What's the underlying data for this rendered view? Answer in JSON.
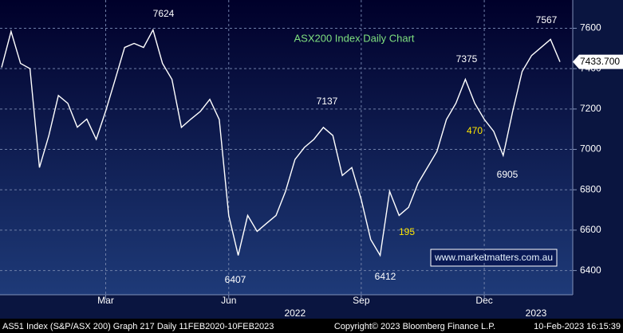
{
  "chart_data": {
    "type": "line",
    "title": "ASX200 Index Daily Chart",
    "categories": [
      null,
      null,
      null,
      null,
      null,
      null,
      null,
      null,
      null,
      null,
      null,
      "Mar",
      null,
      null,
      null,
      null,
      null,
      null,
      null,
      null,
      null,
      null,
      null,
      null,
      "Jun",
      null,
      null,
      null,
      null,
      null,
      null,
      null,
      null,
      null,
      null,
      null,
      null,
      null,
      "Sep",
      null,
      null,
      null,
      null,
      null,
      null,
      null,
      null,
      null,
      null,
      null,
      null,
      "Dec",
      null,
      null,
      null,
      null,
      null,
      null,
      null,
      null
    ],
    "x_year_labels": [
      "2022",
      "2023"
    ],
    "series": [
      {
        "name": "AS51 Index",
        "color": "#ffffff",
        "values": [
          7406,
          7584,
          7426,
          7400,
          6910,
          7070,
          7267,
          7228,
          7110,
          7150,
          7050,
          7190,
          7346,
          7505,
          7525,
          7505,
          7592,
          7426,
          7347,
          7109,
          7150,
          7188,
          7248,
          7148,
          6673,
          6475,
          6673,
          6594,
          6634,
          6673,
          6792,
          6950,
          7010,
          7050,
          7109,
          7069,
          6871,
          6910,
          6752,
          6554,
          6475,
          6792,
          6673,
          6713,
          6832,
          6911,
          6990,
          7148,
          7228,
          7347,
          7228,
          7149,
          7089,
          6970,
          7188,
          7386,
          7465,
          7505,
          7545,
          7433.7
        ]
      }
    ],
    "last_price_label": "7433.700",
    "ylim": [
      6280,
      7740
    ],
    "yticks": [
      6400,
      6600,
      6800,
      7000,
      7200,
      7400,
      7600
    ],
    "grid": true,
    "annotations": [
      {
        "text": "7624",
        "color": "#ffffff"
      },
      {
        "text": "7137",
        "color": "#ffffff"
      },
      {
        "text": "7375",
        "color": "#ffffff"
      },
      {
        "text": "7567",
        "color": "#ffffff"
      },
      {
        "text": "6407",
        "color": "#ffffff"
      },
      {
        "text": "6412",
        "color": "#ffffff"
      },
      {
        "text": "6905",
        "color": "#ffffff"
      },
      {
        "text": "470",
        "color": "#ffe600"
      },
      {
        "text": "195",
        "color": "#ffe600"
      }
    ],
    "website": "www.marketmatters.com.au",
    "footer": {
      "left": "AS51 Index (S&P/ASX 200) Graph 217  Daily 11FEB2020-10FEB2023",
      "center": "Copyright© 2023 Bloomberg Finance L.P.",
      "right": "10-Feb-2023 16:15:39"
    }
  }
}
